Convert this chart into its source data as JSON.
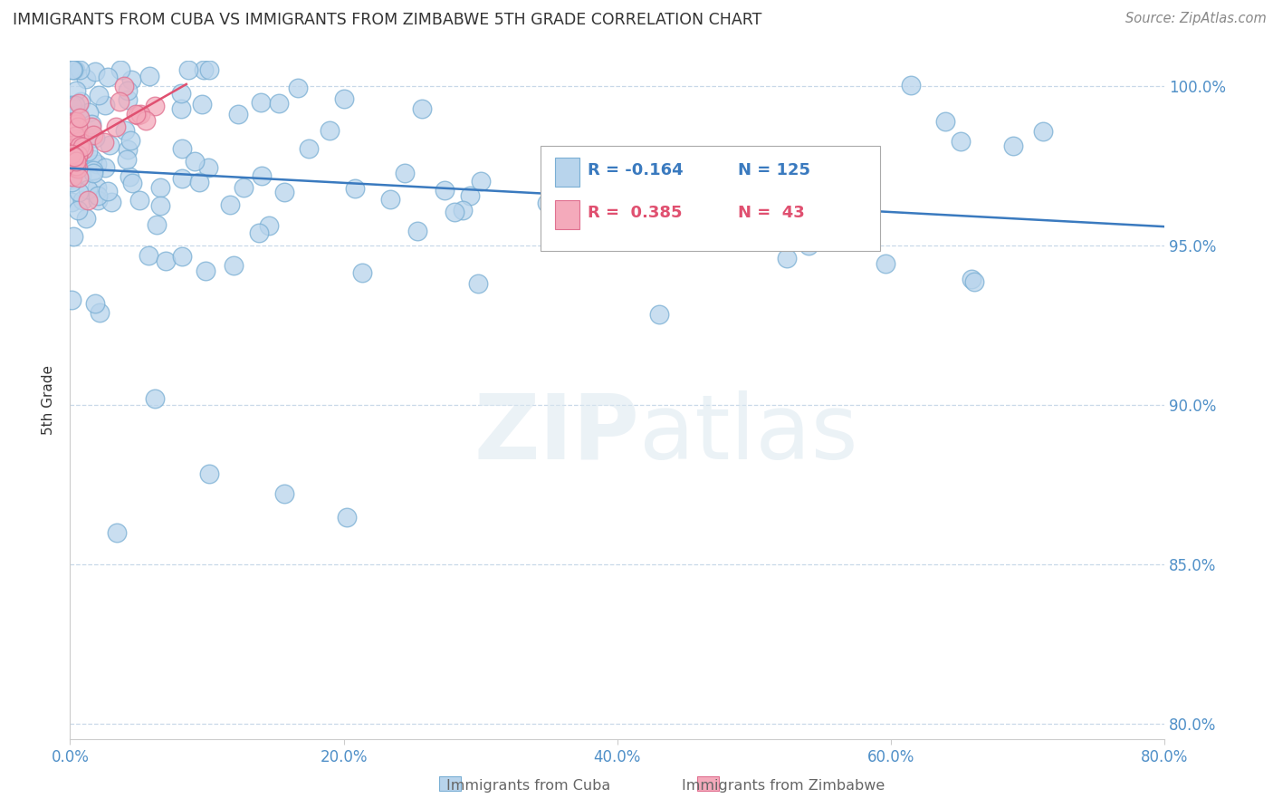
{
  "title": "IMMIGRANTS FROM CUBA VS IMMIGRANTS FROM ZIMBABWE 5TH GRADE CORRELATION CHART",
  "source": "Source: ZipAtlas.com",
  "ylabel": "5th Grade",
  "right_yticks": [
    80.0,
    85.0,
    90.0,
    95.0,
    100.0
  ],
  "xlim": [
    0.0,
    0.8
  ],
  "ylim": [
    0.795,
    1.008
  ],
  "cuba_color": "#b8d4ec",
  "cuba_edge": "#7aafd4",
  "zimbabwe_color": "#f4aabb",
  "zimbabwe_edge": "#e07090",
  "trend_cuba_color": "#3a7abf",
  "trend_zimbabwe_color": "#e05070",
  "legend_r_cuba": "-0.164",
  "legend_n_cuba": "125",
  "legend_r_zimbabwe": "0.385",
  "legend_n_zimbabwe": "43",
  "watermark_zip": "ZIP",
  "watermark_atlas": "atlas",
  "background_color": "#ffffff",
  "grid_color": "#c8d8e8",
  "title_color": "#333333",
  "axis_label_color": "#333333",
  "axis_tick_color": "#5090c8",
  "ytick_label_color": "#5090c8"
}
